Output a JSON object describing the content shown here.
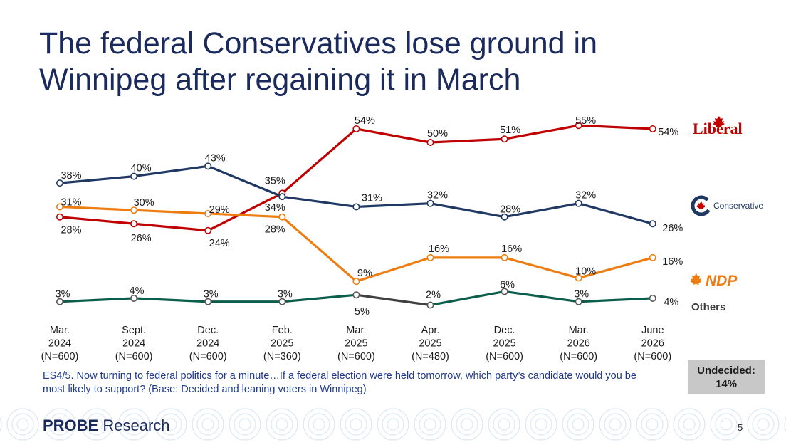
{
  "title": "The federal Conservatives lose ground in Winnipeg after regaining it in March",
  "note": "ES4/5. Now turning to federal politics for a minute…If a federal election were held tomorrow, which party’s candidate would you be most likely to support? (Base: Decided and leaning voters in Winnipeg)",
  "undecided": {
    "label": "Undecided:",
    "value": "14%"
  },
  "brand": {
    "strong": "PROBE",
    "rest": " Research"
  },
  "page_number": "5",
  "party_labels": {
    "liberal": "Liberal",
    "conservative": "Conservative",
    "ndp": "NDP",
    "others": "Others"
  },
  "colors": {
    "liberal": "#c00000",
    "conservative": "#1f3864",
    "ndp": "#ed7d11",
    "others": "#0b5e4b",
    "others_dip": "#404040"
  },
  "chart_data": {
    "type": "line",
    "title": "",
    "xlabel": "",
    "ylabel": "",
    "ylim": [
      0,
      60
    ],
    "grid": false,
    "legend": "right, party logos",
    "categories": [
      [
        "Mar.",
        "2024",
        "(N=600)"
      ],
      [
        "Sept.",
        "2024",
        "(N=600)"
      ],
      [
        "Dec.",
        "2024",
        "(N=600)"
      ],
      [
        "Feb.",
        "2025",
        "(N=360)"
      ],
      [
        "Mar.",
        "2025",
        "(N=600)"
      ],
      [
        "Apr.",
        "2025",
        "(N=480)"
      ],
      [
        "Dec.",
        "2025",
        "(N=600)"
      ],
      [
        "Mar.",
        "2026",
        "(N=600)"
      ],
      [
        "June",
        "2026",
        "(N=600)"
      ]
    ],
    "series": [
      {
        "key": "liberal",
        "values": [
          28,
          26,
          24,
          35,
          54,
          50,
          51,
          55,
          54
        ],
        "labels": [
          "28%",
          "26%",
          "24%",
          "35%",
          "54%",
          "50%",
          "51%",
          "55%",
          "54%"
        ]
      },
      {
        "key": "conservative",
        "values": [
          38,
          40,
          43,
          34,
          31,
          32,
          28,
          32,
          26
        ],
        "labels": [
          "38%",
          "40%",
          "43%",
          "34%",
          "31%",
          "32%",
          "28%",
          "32%",
          "26%"
        ]
      },
      {
        "key": "ndp",
        "values": [
          31,
          30,
          29,
          28,
          9,
          16,
          16,
          10,
          16
        ],
        "labels": [
          "31%",
          "30%",
          "29%",
          "28%",
          "9%",
          "16%",
          "16%",
          "10%",
          "16%"
        ]
      },
      {
        "key": "others",
        "values": [
          3,
          4,
          3,
          3,
          5,
          2,
          6,
          3,
          4
        ],
        "labels": [
          "3%",
          "4%",
          "3%",
          "3%",
          "5%",
          "2%",
          "6%",
          "3%",
          "4%"
        ]
      }
    ]
  }
}
